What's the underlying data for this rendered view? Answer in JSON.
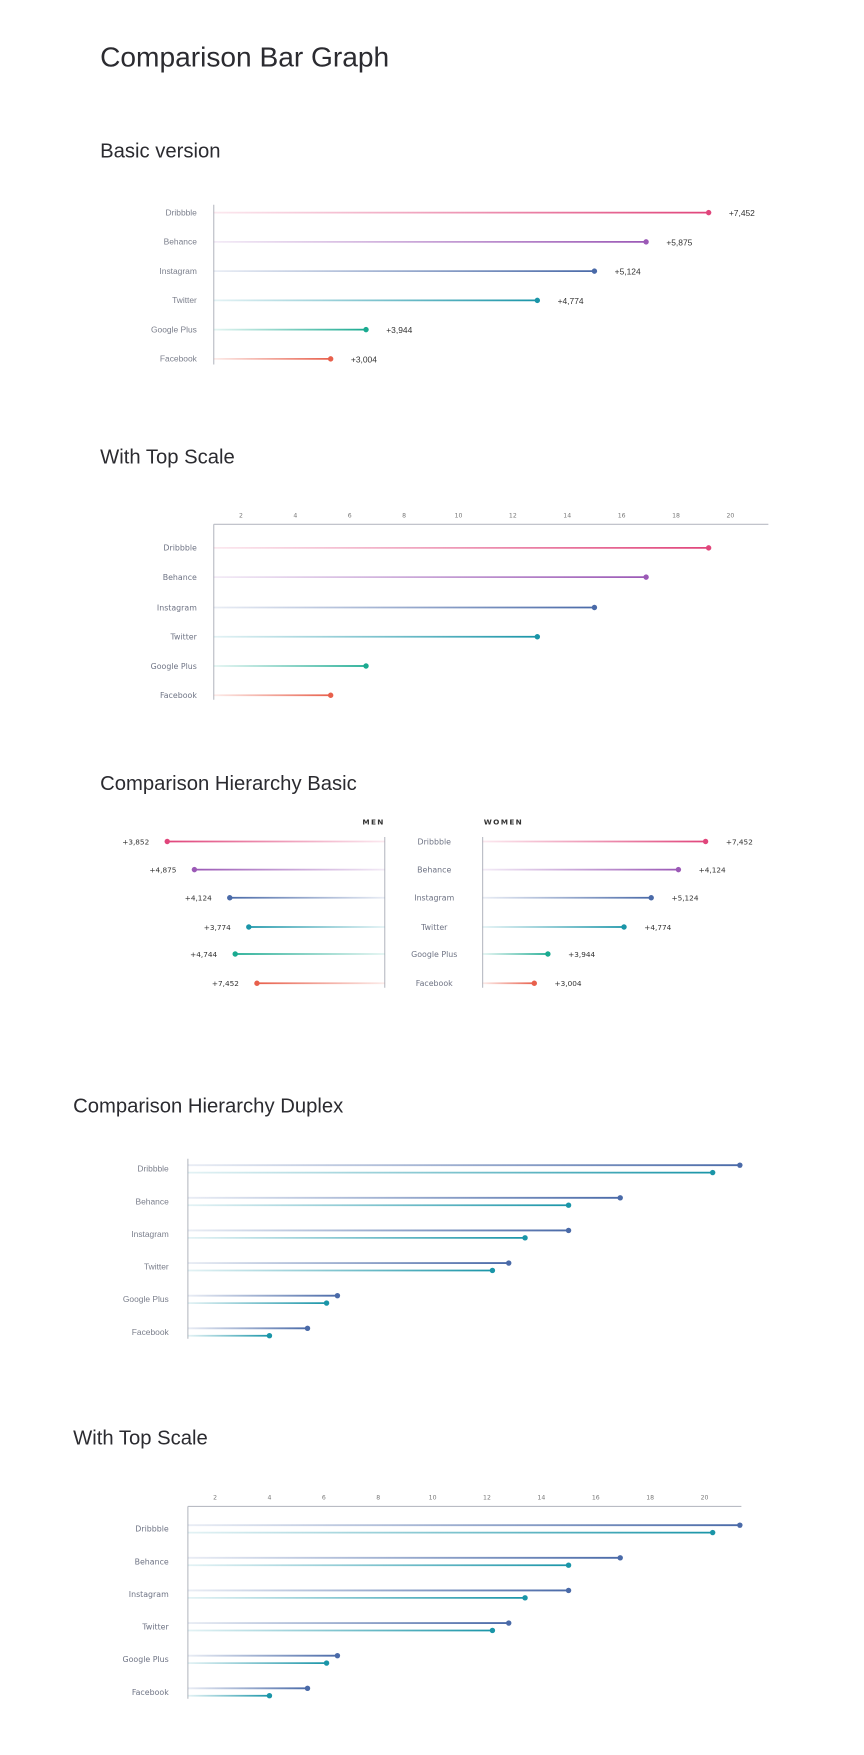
{
  "title": "Comparison Bar Graph",
  "colors": {
    "Dribbble": "#e0457b",
    "Behance": "#9b59b6",
    "Instagram": "#4a6aa8",
    "Twitter": "#1a95a8",
    "Google Plus": "#1aaa90",
    "Facebook": "#e8604c",
    "series_a": "#4a6aa8",
    "series_b": "#1a95a8",
    "axis": "#b9bcc4"
  },
  "chart_data": [
    {
      "section_title": "Basic version",
      "type": "bar",
      "orientation": "horizontal",
      "style": "lollipop",
      "categories": [
        "Dribbble",
        "Behance",
        "Instagram",
        "Twitter",
        "Google Plus",
        "Facebook"
      ],
      "values": [
        19.2,
        16.9,
        15.0,
        12.9,
        6.6,
        5.3
      ],
      "value_labels": [
        "+7,452",
        "+5,875",
        "+5,124",
        "+4,774",
        "+3,944",
        "+3,004"
      ]
    },
    {
      "section_title": "With Top Scale",
      "type": "bar",
      "orientation": "horizontal",
      "style": "lollipop",
      "categories": [
        "Dribbble",
        "Behance",
        "Instagram",
        "Twitter",
        "Google Plus",
        "Facebook"
      ],
      "values": [
        19.2,
        16.9,
        15.0,
        12.9,
        6.6,
        5.3
      ],
      "ticks": [
        "2",
        "4",
        "6",
        "8",
        "10",
        "12",
        "14",
        "16",
        "18",
        "20"
      ],
      "xlim": [
        1,
        22
      ]
    },
    {
      "section_title": "Comparison Hierarchy Basic",
      "type": "bar",
      "orientation": "horizontal",
      "style": "diverging-lollipop",
      "categories": [
        "Dribbble",
        "Behance",
        "Instagram",
        "Twitter",
        "Google Plus",
        "Facebook"
      ],
      "series": [
        {
          "name": "MEN",
          "values": [
            8.0,
            7.0,
            5.7,
            5.0,
            5.5,
            4.7
          ],
          "value_labels": [
            "+3,852",
            "+4,875",
            "+4,124",
            "+3,774",
            "+4,744",
            "+7,452"
          ]
        },
        {
          "name": "WOMEN",
          "values": [
            8.2,
            7.2,
            6.2,
            5.2,
            2.4,
            1.9
          ],
          "value_labels": [
            "+7,452",
            "+4,124",
            "+5,124",
            "+4,774",
            "+3,944",
            "+3,004"
          ]
        }
      ]
    },
    {
      "section_title": "Comparison Hierarchy Duplex",
      "type": "bar",
      "orientation": "horizontal",
      "style": "paired-lollipop",
      "categories": [
        "Dribbble",
        "Behance",
        "Instagram",
        "Twitter",
        "Google Plus",
        "Facebook"
      ],
      "series": [
        {
          "values": [
            21.3,
            16.9,
            15.0,
            12.8,
            6.5,
            5.4
          ]
        },
        {
          "values": [
            20.3,
            15.0,
            13.4,
            12.2,
            6.1,
            4.0
          ]
        }
      ]
    },
    {
      "section_title": "With Top Scale",
      "type": "bar",
      "orientation": "horizontal",
      "style": "paired-lollipop",
      "categories": [
        "Dribbble",
        "Behance",
        "Instagram",
        "Twitter",
        "Google Plus",
        "Facebook"
      ],
      "series": [
        {
          "values": [
            21.3,
            16.9,
            15.0,
            12.8,
            6.5,
            5.4
          ]
        },
        {
          "values": [
            20.3,
            15.0,
            13.4,
            12.2,
            6.1,
            4.0
          ]
        }
      ],
      "ticks": [
        "2",
        "4",
        "6",
        "8",
        "10",
        "12",
        "14",
        "16",
        "18",
        "20"
      ],
      "xlim": [
        1,
        22
      ]
    }
  ]
}
